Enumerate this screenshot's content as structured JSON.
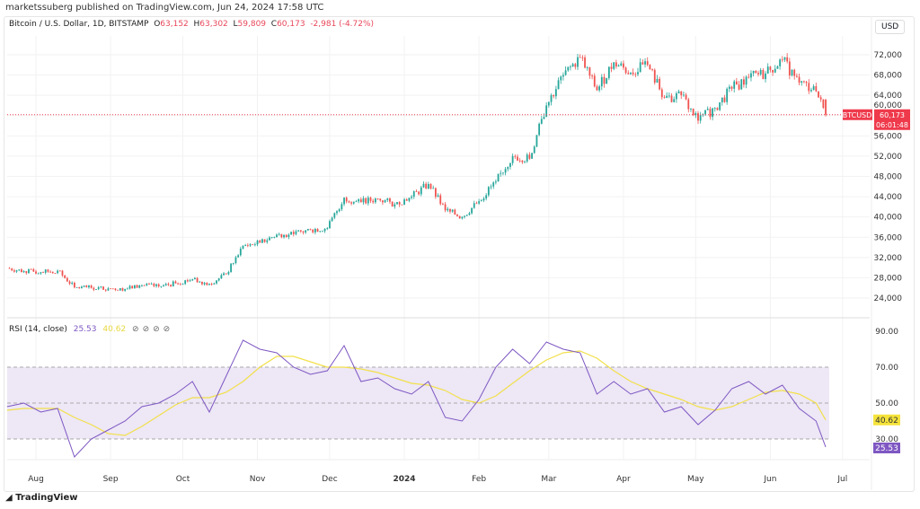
{
  "header": {
    "published": "marketssuberg published on TradingView.com, Jun 24, 2024 17:58 UTC",
    "symbol": "Bitcoin / U.S. Dollar, 1D, BITSTAMP",
    "open_label": "O",
    "open": "63,152",
    "high_label": "H",
    "high": "63,302",
    "low_label": "L",
    "low": "59,809",
    "close_label": "C",
    "close": "60,173",
    "change": "-2,981 (-4.72%)"
  },
  "currency_button": "USD",
  "footer": {
    "brand": "TradingView",
    "logo_icon": "tradingview-logo-icon"
  },
  "colors": {
    "up": "#26a69a",
    "down": "#ef5350",
    "rsi": "#7e57c2",
    "rsi_ma": "#f2e04a",
    "rsi_band": "#ede7f6",
    "price_tag": "#ef3a4c"
  },
  "chart_data": [
    {
      "type": "candlestick",
      "title": "Bitcoin / U.S. Dollar, 1D, BITSTAMP",
      "ylim": [
        22000,
        74000
      ],
      "yticks": [
        "72,000",
        "68,000",
        "64,000",
        "60,000",
        "56,000",
        "52,000",
        "48,000",
        "44,000",
        "40,000",
        "36,000",
        "32,000",
        "28,000",
        "24,000"
      ],
      "ytick_values": [
        72000,
        68000,
        64000,
        60000,
        56000,
        52000,
        48000,
        44000,
        40000,
        36000,
        32000,
        28000,
        24000
      ],
      "last_price_tag": {
        "symbol": "BTCUSD",
        "price": "60,173",
        "countdown": "06:01:48",
        "value": 60173
      },
      "weekly_closes": [
        [
          "2023-07-20",
          29900
        ],
        [
          "2023-07-27",
          29300
        ],
        [
          "2023-08-03",
          29100
        ],
        [
          "2023-08-10",
          29400
        ],
        [
          "2023-08-17",
          26100
        ],
        [
          "2023-08-24",
          26000
        ],
        [
          "2023-08-31",
          25900
        ],
        [
          "2023-09-07",
          25800
        ],
        [
          "2023-09-14",
          26500
        ],
        [
          "2023-09-21",
          26300
        ],
        [
          "2023-09-28",
          26900
        ],
        [
          "2023-10-05",
          27700
        ],
        [
          "2023-10-12",
          26800
        ],
        [
          "2023-10-19",
          28700
        ],
        [
          "2023-10-26",
          34300
        ],
        [
          "2023-11-02",
          34900
        ],
        [
          "2023-11-09",
          36500
        ],
        [
          "2023-11-16",
          36600
        ],
        [
          "2023-11-23",
          37500
        ],
        [
          "2023-11-30",
          37800
        ],
        [
          "2023-12-07",
          43800
        ],
        [
          "2023-12-14",
          42900
        ],
        [
          "2023-12-21",
          43600
        ],
        [
          "2023-12-28",
          42500
        ],
        [
          "2024-01-04",
          44000
        ],
        [
          "2024-01-11",
          46500
        ],
        [
          "2024-01-18",
          41300
        ],
        [
          "2024-01-25",
          40000
        ],
        [
          "2024-02-01",
          43100
        ],
        [
          "2024-02-08",
          47000
        ],
        [
          "2024-02-15",
          52000
        ],
        [
          "2024-02-22",
          51500
        ],
        [
          "2024-02-29",
          62000
        ],
        [
          "2024-03-07",
          68000
        ],
        [
          "2024-03-14",
          71500
        ],
        [
          "2024-03-21",
          65000
        ],
        [
          "2024-03-28",
          70500
        ],
        [
          "2024-04-04",
          68500
        ],
        [
          "2024-04-11",
          70000
        ],
        [
          "2024-04-18",
          63500
        ],
        [
          "2024-04-25",
          64000
        ],
        [
          "2024-05-02",
          59000
        ],
        [
          "2024-05-09",
          61500
        ],
        [
          "2024-05-16",
          65300
        ],
        [
          "2024-05-23",
          67500
        ],
        [
          "2024-05-30",
          68300
        ],
        [
          "2024-06-06",
          71000
        ],
        [
          "2024-06-13",
          66500
        ],
        [
          "2024-06-20",
          64800
        ],
        [
          "2024-06-24",
          60173
        ]
      ]
    },
    {
      "type": "line",
      "title": "RSI (14, close)",
      "value": "25.53",
      "ma_value": "40.62",
      "ylim": [
        15,
        95
      ],
      "yticks": [
        "90.00",
        "70.00",
        "50.00",
        "30.00"
      ],
      "ytick_values": [
        90,
        70,
        50,
        30
      ],
      "band": [
        30,
        70
      ],
      "series": [
        {
          "name": "RSI",
          "values": [
            48,
            50,
            45,
            47,
            20,
            30,
            35,
            40,
            48,
            50,
            55,
            62,
            45,
            65,
            85,
            80,
            78,
            70,
            66,
            68,
            82,
            62,
            64,
            58,
            55,
            62,
            42,
            40,
            52,
            70,
            80,
            72,
            84,
            80,
            78,
            55,
            62,
            55,
            58,
            45,
            48,
            38,
            46,
            58,
            62,
            55,
            60,
            47,
            40,
            25.53
          ]
        },
        {
          "name": "RSI-based MA",
          "values": [
            46,
            47,
            47,
            47,
            42,
            38,
            33,
            32,
            37,
            43,
            49,
            53,
            53,
            56,
            62,
            70,
            76,
            76,
            73,
            70,
            70,
            69,
            67,
            64,
            61,
            60,
            57,
            52,
            50,
            54,
            61,
            68,
            74,
            78,
            79,
            75,
            68,
            62,
            58,
            55,
            52,
            48,
            46,
            48,
            52,
            56,
            57,
            55,
            50,
            40.62
          ]
        }
      ]
    }
  ],
  "x_axis": {
    "labels": [
      "Aug",
      "Sep",
      "Oct",
      "Nov",
      "Dec",
      "2024",
      "Feb",
      "Mar",
      "Apr",
      "May",
      "Jun",
      "Jul"
    ],
    "dates": [
      "2023-08-01",
      "2023-09-01",
      "2023-10-01",
      "2023-11-01",
      "2023-12-01",
      "2024-01-01",
      "2024-02-01",
      "2024-03-01",
      "2024-04-01",
      "2024-05-01",
      "2024-06-01",
      "2024-07-01"
    ]
  }
}
